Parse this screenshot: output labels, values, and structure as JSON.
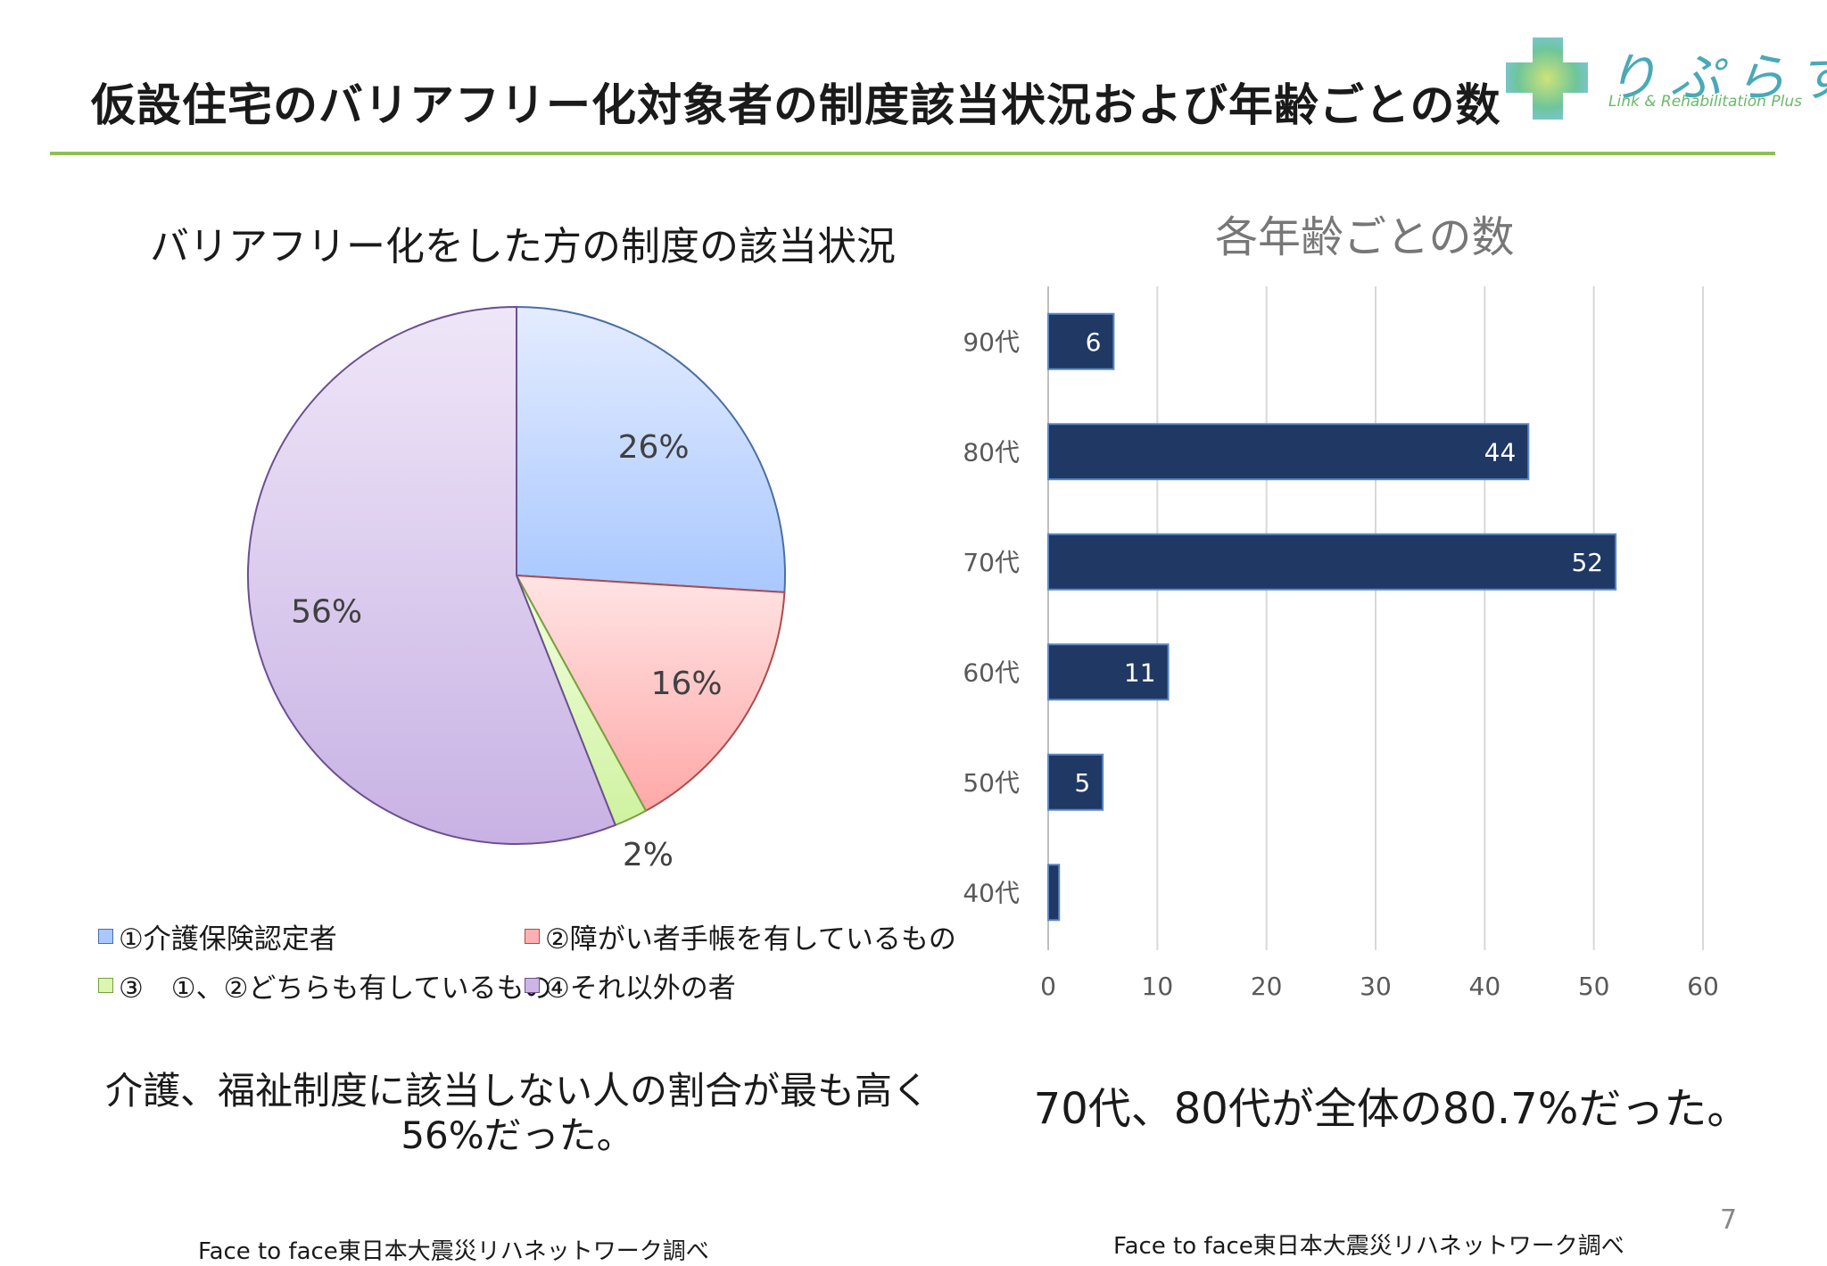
{
  "header": {
    "title": "仮設住宅のバリアフリー化対象者の制度該当状況および年齢ごとの数",
    "logo_text": "りぷらす",
    "logo_subtitle": "Link & Rehabilitation Plus"
  },
  "pie_summary_line1": "介護、福祉制度に該当しない人の割合が最も高く",
  "pie_summary_line2": "56%だった。",
  "bar_summary": "70代、80代が全体の80.7%だった。",
  "source_left": "Face to face東日本大震災リハネットワーク調べ",
  "source_right": "Face to face東日本大震災リハネットワーク調べ",
  "page_number": "7",
  "colors": {
    "accent_rule": "#8cc152",
    "bar_fill": "#1f3864",
    "pie_blue": "#a9c8ff",
    "pie_red": "#ffb0b0",
    "pie_green": "#d9f7b0",
    "pie_purple": "#cdb6e6"
  },
  "chart_data": [
    {
      "type": "pie",
      "title": "バリアフリー化をした方の制度の該当状況",
      "categories": [
        "①介護保険認定者",
        "②障がい者手帳を有しているもの",
        "③　①、②どちらも有しているもの",
        "④それ以外の者"
      ],
      "values": [
        26,
        16,
        2,
        56
      ],
      "labels": [
        "26%",
        "16%",
        "2%",
        "56%"
      ],
      "colors": [
        "#a9c8ff",
        "#ffb0b0",
        "#d9f7b0",
        "#cdb6e6"
      ],
      "legend_position": "bottom"
    },
    {
      "type": "bar",
      "orientation": "horizontal",
      "title": "各年齢ごとの数",
      "categories": [
        "90代",
        "80代",
        "70代",
        "60代",
        "50代",
        "40代"
      ],
      "values": [
        6,
        44,
        52,
        11,
        5,
        1
      ],
      "value_labels": [
        "6",
        "44",
        "52",
        "11",
        "5",
        ""
      ],
      "xlim": [
        0,
        60
      ],
      "xticks": [
        "0",
        "10",
        "20",
        "30",
        "40",
        "50",
        "60"
      ],
      "grid": true
    }
  ]
}
